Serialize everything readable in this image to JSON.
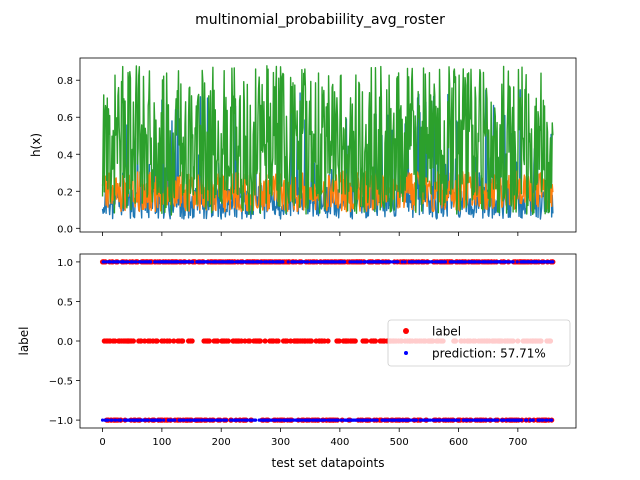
{
  "figure": {
    "title": "multinomial_probabiility_avg_roster"
  },
  "chart_data": [
    {
      "type": "line",
      "ylabel": "h(x)",
      "xlabel": "",
      "xlim": [
        -38,
        798
      ],
      "ylim": [
        -0.02,
        0.92
      ],
      "x_ticks": [
        0,
        100,
        200,
        300,
        400,
        500,
        600,
        700
      ],
      "y_ticks": [
        0.0,
        0.2,
        0.4,
        0.6,
        0.8
      ],
      "y_tick_labels": [
        "0.0",
        "0.2",
        "0.4",
        "0.6",
        "0.8"
      ],
      "n_points": 760,
      "series": [
        {
          "color": "#2ca02c",
          "pattern_low": [
            0.08,
            0.18,
            0.3,
            0.45
          ],
          "pattern_high": [
            0.55,
            0.68,
            0.8,
            0.88
          ],
          "style": "high-frequency noise"
        },
        {
          "color": "#ff7f0e",
          "range": [
            0.08,
            0.34
          ],
          "style": "high-frequency noise"
        },
        {
          "color": "#1f77b4",
          "range": [
            0.04,
            0.76
          ],
          "style": "high-frequency noise, mostly 0.05-0.25 with spikes"
        }
      ]
    },
    {
      "type": "scatter",
      "xlabel": "test set datapoints",
      "ylabel": "label",
      "xlim": [
        -38,
        798
      ],
      "ylim": [
        -1.1,
        1.1
      ],
      "x_ticks": [
        0,
        100,
        200,
        300,
        400,
        500,
        600,
        700
      ],
      "x_tick_labels": [
        "0",
        "100",
        "200",
        "300",
        "400",
        "500",
        "600",
        "700"
      ],
      "y_ticks": [
        -1.0,
        -0.5,
        0.0,
        0.5,
        1.0
      ],
      "y_tick_labels": [
        "−1.0",
        "−0.5",
        "0.0",
        "0.5",
        "1.0"
      ],
      "legend": {
        "placement": "center-right",
        "entries": [
          {
            "label": "label",
            "color": "#ff0000"
          },
          {
            "label": "prediction: 57.71%",
            "color": "#0000ff"
          }
        ]
      },
      "series": [
        {
          "name": "label",
          "color": "#ff0000",
          "levels": [
            -1,
            0,
            1
          ]
        },
        {
          "name": "prediction: 57.71%",
          "color": "#0000ff",
          "levels": [
            -1,
            1
          ]
        }
      ]
    }
  ]
}
